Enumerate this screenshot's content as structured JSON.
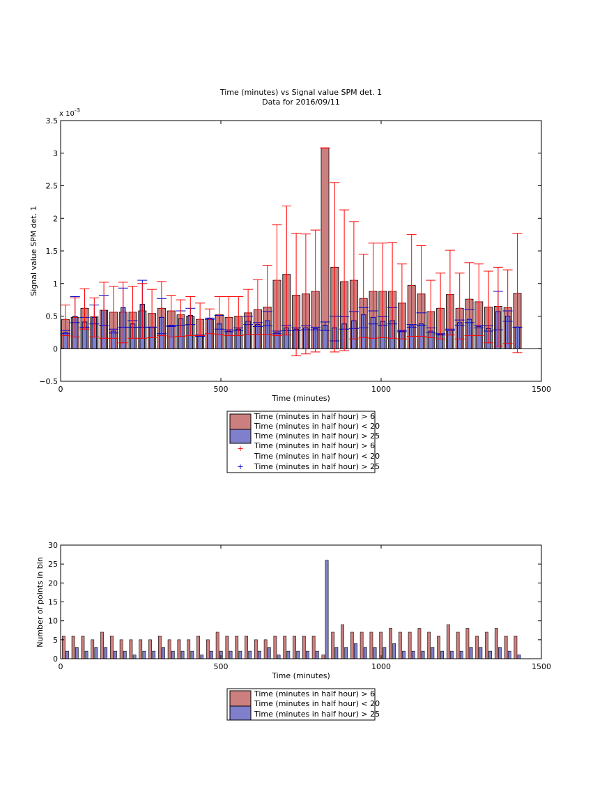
{
  "chart_data": [
    {
      "type": "bar",
      "title": "Time (minutes) vs Signal value SPM det. 1",
      "subtitle": "Data for 2016/09/11",
      "xlabel": "Time (minutes)",
      "ylabel": "Signal value SPM det. 1",
      "y_multiplier_label": "x 10",
      "y_multiplier_exponent": "-3",
      "xlim": [
        0,
        1500
      ],
      "ylim": [
        -0.5,
        3.5
      ],
      "xticks": [
        0,
        500,
        1000,
        1500
      ],
      "xtick_labels": [
        "0",
        "500",
        "1000",
        "1500"
      ],
      "yticks": [
        -0.5,
        0,
        0.5,
        1,
        1.5,
        2,
        2.5,
        3,
        3.5
      ],
      "ytick_labels": [
        "−0.5",
        "0",
        "0.5",
        "1",
        "1.5",
        "2",
        "2.5",
        "3",
        "3.5"
      ],
      "grid": false,
      "legend_position": "below",
      "legend_labels": [
        "Time (minutes in half hour) > 6",
        "Time (minutes in half hour) < 20",
        "Time (minutes in half hour) > 25",
        "Time (minutes in half hour) > 6",
        "Time (minutes in half hour) < 20",
        "Time (minutes in half hour) > 25"
      ],
      "x": [
        15,
        45,
        75,
        105,
        135,
        165,
        195,
        225,
        255,
        285,
        315,
        345,
        375,
        405,
        435,
        465,
        495,
        525,
        555,
        585,
        615,
        645,
        675,
        705,
        735,
        765,
        795,
        825,
        855,
        885,
        915,
        945,
        975,
        1005,
        1035,
        1065,
        1095,
        1125,
        1155,
        1185,
        1215,
        1245,
        1275,
        1305,
        1335,
        1365,
        1395,
        1425
      ],
      "series": [
        {
          "name": "Time (minutes in half hour) > 6",
          "color": "#cc7f7f",
          "values": [
            0.45,
            0.48,
            0.62,
            0.49,
            0.59,
            0.56,
            0.56,
            0.56,
            0.58,
            0.54,
            0.62,
            0.58,
            0.52,
            0.5,
            0.45,
            0.45,
            0.52,
            0.48,
            0.5,
            0.55,
            0.6,
            0.64,
            1.05,
            1.14,
            0.82,
            0.84,
            0.88,
            3.08,
            1.25,
            1.03,
            1.05,
            0.77,
            0.88,
            0.88,
            0.88,
            0.7,
            0.97,
            0.84,
            0.57,
            0.62,
            0.83,
            0.62,
            0.76,
            0.72,
            0.64,
            0.65,
            0.63,
            0.85
          ],
          "err_low": [
            0.25,
            0.3,
            0.32,
            0.31,
            0.43,
            0.4,
            0.47,
            0.4,
            0.42,
            0.37,
            0.42,
            0.4,
            0.33,
            0.3,
            0.25,
            0.22,
            0.3,
            0.28,
            0.3,
            0.33,
            0.38,
            0.42,
            0.85,
            0.93,
            0.93,
            0.92,
            0.93,
            0.0,
            1.3,
            1.06,
            0.9,
            0.6,
            0.72,
            0.71,
            0.72,
            0.55,
            0.78,
            0.65,
            0.4,
            0.47,
            0.62,
            0.47,
            0.56,
            0.52,
            0.55,
            0.61,
            0.55,
            0.91
          ],
          "err_high": [
            0.22,
            0.3,
            0.3,
            0.29,
            0.43,
            0.4,
            0.46,
            0.4,
            0.42,
            0.37,
            0.41,
            0.24,
            0.23,
            0.3,
            0.25,
            0.16,
            0.28,
            0.32,
            0.3,
            0.36,
            0.46,
            0.64,
            0.85,
            1.05,
            0.95,
            0.92,
            0.94,
            0.0,
            1.3,
            1.1,
            0.9,
            0.68,
            0.74,
            0.74,
            0.75,
            0.6,
            0.78,
            0.74,
            0.48,
            0.54,
            0.68,
            0.54,
            0.56,
            0.58,
            0.55,
            0.6,
            0.58,
            0.92
          ]
        },
        {
          "name": "Time (minutes in half hour) > 25",
          "color": "#7f7fcc",
          "values": [
            0.25,
            0.5,
            0.41,
            0.48,
            0.59,
            0.27,
            0.63,
            0.38,
            0.68,
            0.33,
            0.48,
            0.35,
            0.46,
            0.51,
            0.2,
            0.46,
            0.38,
            0.27,
            0.3,
            0.42,
            0.37,
            0.43,
            0.25,
            0.32,
            0.3,
            0.32,
            0.31,
            0.36,
            0.32,
            0.38,
            0.43,
            0.52,
            0.48,
            0.42,
            0.43,
            0.27,
            0.35,
            0.38,
            0.27,
            0.22,
            0.28,
            0.4,
            0.45,
            0.34,
            0.31,
            0.57,
            0.5,
            0.33
          ],
          "err_low": [
            0.02,
            0.1,
            0.08,
            0.1,
            0.23,
            0.03,
            0.3,
            0.05,
            0.35,
            0.0,
            0.25,
            0.01,
            0.1,
            0.14,
            0.01,
            0.01,
            0.08,
            0.01,
            0.02,
            0.05,
            0.03,
            0.08,
            0.02,
            0.04,
            0.02,
            0.03,
            0.02,
            0.08,
            0.2,
            0.08,
            0.12,
            0.2,
            0.1,
            0.06,
            0.05,
            0.01,
            0.02,
            0.02,
            0.02,
            0.01,
            0.0,
            0.04,
            0.05,
            0.02,
            0.04,
            0.28,
            0.08,
            0.0
          ],
          "err_high": [
            0.03,
            0.3,
            0.07,
            0.19,
            0.23,
            0.03,
            0.3,
            0.05,
            0.37,
            0.0,
            0.29,
            0.01,
            0.12,
            0.11,
            0.01,
            0.01,
            0.13,
            0.02,
            0.02,
            0.08,
            0.03,
            0.14,
            0.02,
            0.04,
            0.02,
            0.03,
            0.02,
            0.05,
            0.18,
            0.11,
            0.14,
            0.11,
            0.1,
            0.07,
            0.2,
            0.01,
            0.02,
            0.17,
            0.05,
            0.01,
            0.02,
            0.04,
            0.15,
            0.02,
            0.04,
            0.31,
            0.08,
            0.0
          ]
        }
      ]
    },
    {
      "type": "bar",
      "xlabel": "Time (minutes)",
      "ylabel": "Number of points in bin",
      "xlim": [
        0,
        1500
      ],
      "ylim": [
        0,
        30
      ],
      "xticks": [
        0,
        500,
        1000,
        1500
      ],
      "xtick_labels": [
        "0",
        "500",
        "1000",
        "1500"
      ],
      "yticks": [
        0,
        5,
        10,
        15,
        20,
        25,
        30
      ],
      "ytick_labels": [
        "0",
        "5",
        "10",
        "15",
        "20",
        "25",
        "30"
      ],
      "grid": false,
      "legend_position": "below",
      "legend_labels": [
        "Time (minutes in half hour) > 6",
        "Time (minutes in half hour) < 20",
        "Time (minutes in half hour) > 25"
      ],
      "x": [
        15,
        45,
        75,
        105,
        135,
        165,
        195,
        225,
        255,
        285,
        315,
        345,
        375,
        405,
        435,
        465,
        495,
        525,
        555,
        585,
        615,
        645,
        675,
        705,
        735,
        765,
        795,
        825,
        855,
        885,
        915,
        945,
        975,
        1005,
        1035,
        1065,
        1095,
        1125,
        1155,
        1185,
        1215,
        1245,
        1275,
        1305,
        1335,
        1365,
        1395,
        1425
      ],
      "series": [
        {
          "name": "Time (minutes in half hour) > 6",
          "color": "#cc7f7f",
          "values": [
            6,
            6,
            6,
            5,
            7,
            6,
            5,
            5,
            5,
            5,
            6,
            5,
            5,
            5,
            6,
            5,
            7,
            6,
            6,
            6,
            5,
            5,
            6,
            6,
            6,
            6,
            6,
            1,
            7,
            9,
            7,
            7,
            7,
            7,
            8,
            7,
            7,
            8,
            7,
            6,
            9,
            7,
            8,
            6,
            7,
            8,
            6,
            6
          ]
        },
        {
          "name": "Time (minutes in half hour) > 25",
          "color": "#7f7fcc",
          "values": [
            2,
            3,
            2,
            3,
            3,
            2,
            2,
            1,
            2,
            2,
            3,
            2,
            2,
            2,
            1,
            2,
            2,
            2,
            2,
            2,
            2,
            3,
            1,
            2,
            2,
            2,
            2,
            26,
            3,
            3,
            4,
            3,
            3,
            3,
            4,
            2,
            2,
            2,
            3,
            2,
            2,
            2,
            3,
            3,
            2,
            3,
            2,
            1
          ]
        }
      ]
    }
  ]
}
